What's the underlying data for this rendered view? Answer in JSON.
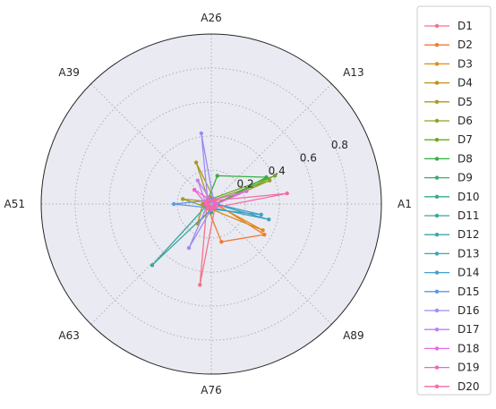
{
  "chart_data": {
    "type": "radar",
    "categories": [
      "A1",
      "A13",
      "A26",
      "A39",
      "A51",
      "A63",
      "A76",
      "A89"
    ],
    "angle_label_degrees": [
      0,
      45,
      90,
      135,
      180,
      225,
      270,
      315
    ],
    "radial_ticks": [
      "0.2",
      "0.4",
      "0.6",
      "0.8"
    ],
    "radial_tick_values": [
      0.2,
      0.4,
      0.6,
      0.8
    ],
    "rlim": [
      0,
      1.0
    ],
    "grid": true,
    "legend_position": "right",
    "background_color": "#eaeaf2",
    "series": [
      {
        "name": "D1",
        "color": "#f77189",
        "points": [
          [
            0,
            0.04
          ],
          [
            45,
            0.02
          ],
          [
            90,
            0.03
          ],
          [
            135,
            0.02
          ],
          [
            180,
            0.05
          ],
          [
            225,
            0.04
          ],
          [
            262,
            0.48
          ],
          [
            315,
            0.03
          ]
        ]
      },
      {
        "name": "D2",
        "color": "#f37932",
        "points": [
          [
            0,
            0.03
          ],
          [
            45,
            0.02
          ],
          [
            90,
            0.04
          ],
          [
            135,
            0.02
          ],
          [
            180,
            0.03
          ],
          [
            225,
            0.03
          ],
          [
            285,
            0.23
          ],
          [
            330,
            0.36
          ]
        ]
      },
      {
        "name": "D3",
        "color": "#de8b19",
        "points": [
          [
            0,
            0.02
          ],
          [
            45,
            0.03
          ],
          [
            90,
            0.02
          ],
          [
            135,
            0.03
          ],
          [
            180,
            0.04
          ],
          [
            225,
            0.02
          ],
          [
            270,
            0.03
          ],
          [
            333,
            0.34
          ]
        ]
      },
      {
        "name": "D4",
        "color": "#c28f1a",
        "points": [
          [
            0,
            0.03
          ],
          [
            45,
            0.02
          ],
          [
            90,
            0.03
          ],
          [
            135,
            0.02
          ],
          [
            180,
            0.05
          ],
          [
            235,
            0.14
          ],
          [
            270,
            0.03
          ],
          [
            315,
            0.02
          ]
        ]
      },
      {
        "name": "D5",
        "color": "#ad9820",
        "points": [
          [
            0,
            0.02
          ],
          [
            45,
            0.03
          ],
          [
            110,
            0.26
          ],
          [
            135,
            0.02
          ],
          [
            170,
            0.17
          ],
          [
            225,
            0.03
          ],
          [
            270,
            0.02
          ],
          [
            315,
            0.03
          ]
        ]
      },
      {
        "name": "D6",
        "color": "#92a024",
        "points": [
          [
            0,
            0.03
          ],
          [
            22,
            0.37
          ],
          [
            90,
            0.02
          ],
          [
            135,
            0.03
          ],
          [
            180,
            0.04
          ],
          [
            225,
            0.03
          ],
          [
            270,
            0.02
          ],
          [
            315,
            0.03
          ]
        ]
      },
      {
        "name": "D7",
        "color": "#6ca824",
        "points": [
          [
            0,
            0.02
          ],
          [
            24,
            0.41
          ],
          [
            90,
            0.03
          ],
          [
            135,
            0.02
          ],
          [
            180,
            0.03
          ],
          [
            225,
            0.02
          ],
          [
            270,
            0.03
          ],
          [
            315,
            0.02
          ]
        ]
      },
      {
        "name": "D8",
        "color": "#34af41",
        "points": [
          [
            0,
            0.03
          ],
          [
            26,
            0.36
          ],
          [
            78,
            0.17
          ],
          [
            135,
            0.03
          ],
          [
            180,
            0.02
          ],
          [
            225,
            0.03
          ],
          [
            270,
            0.02
          ],
          [
            315,
            0.03
          ]
        ]
      },
      {
        "name": "D9",
        "color": "#36ad74",
        "points": [
          [
            0,
            0.02
          ],
          [
            45,
            0.03
          ],
          [
            90,
            0.02
          ],
          [
            135,
            0.03
          ],
          [
            180,
            0.02
          ],
          [
            225,
            0.03
          ],
          [
            270,
            0.05
          ],
          [
            315,
            0.02
          ]
        ]
      },
      {
        "name": "D10",
        "color": "#38aa8d",
        "points": [
          [
            0,
            0.03
          ],
          [
            45,
            0.02
          ],
          [
            90,
            0.03
          ],
          [
            135,
            0.02
          ],
          [
            180,
            0.03
          ],
          [
            225,
            0.03
          ],
          [
            270,
            0.02
          ],
          [
            315,
            0.03
          ]
        ]
      },
      {
        "name": "D11",
        "color": "#39a89e",
        "points": [
          [
            0,
            0.02
          ],
          [
            45,
            0.03
          ],
          [
            90,
            0.02
          ],
          [
            135,
            0.03
          ],
          [
            180,
            0.02
          ],
          [
            226,
            0.5
          ],
          [
            270,
            0.03
          ],
          [
            315,
            0.02
          ]
        ]
      },
      {
        "name": "D12",
        "color": "#3ba6ab",
        "points": [
          [
            0,
            0.03
          ],
          [
            45,
            0.02
          ],
          [
            90,
            0.03
          ],
          [
            135,
            0.02
          ],
          [
            180,
            0.03
          ],
          [
            225,
            0.02
          ],
          [
            270,
            0.03
          ],
          [
            315,
            0.02
          ]
        ]
      },
      {
        "name": "D13",
        "color": "#3da4b9",
        "points": [
          [
            0,
            0.02
          ],
          [
            45,
            0.03
          ],
          [
            90,
            0.02
          ],
          [
            135,
            0.03
          ],
          [
            180,
            0.02
          ],
          [
            225,
            0.03
          ],
          [
            270,
            0.02
          ],
          [
            345,
            0.35
          ]
        ]
      },
      {
        "name": "D14",
        "color": "#40a0cc",
        "points": [
          [
            0,
            0.03
          ],
          [
            45,
            0.02
          ],
          [
            90,
            0.03
          ],
          [
            135,
            0.02
          ],
          [
            180,
            0.03
          ],
          [
            225,
            0.02
          ],
          [
            270,
            0.03
          ],
          [
            348,
            0.3
          ]
        ]
      },
      {
        "name": "D15",
        "color": "#5a97e9",
        "points": [
          [
            0,
            0.02
          ],
          [
            45,
            0.03
          ],
          [
            90,
            0.02
          ],
          [
            135,
            0.03
          ],
          [
            180,
            0.22
          ],
          [
            225,
            0.03
          ],
          [
            270,
            0.02
          ],
          [
            315,
            0.03
          ]
        ]
      },
      {
        "name": "D16",
        "color": "#9a8df4",
        "points": [
          [
            0,
            0.03
          ],
          [
            45,
            0.02
          ],
          [
            98,
            0.42
          ],
          [
            135,
            0.03
          ],
          [
            180,
            0.02
          ],
          [
            243,
            0.29
          ],
          [
            270,
            0.03
          ],
          [
            315,
            0.02
          ]
        ]
      },
      {
        "name": "D17",
        "color": "#c17ff4",
        "points": [
          [
            0,
            0.02
          ],
          [
            45,
            0.03
          ],
          [
            90,
            0.02
          ],
          [
            120,
            0.16
          ],
          [
            180,
            0.03
          ],
          [
            225,
            0.02
          ],
          [
            270,
            0.03
          ],
          [
            315,
            0.02
          ]
        ]
      },
      {
        "name": "D18",
        "color": "#e56ae6",
        "points": [
          [
            0,
            0.03
          ],
          [
            20,
            0.22
          ],
          [
            90,
            0.02
          ],
          [
            135,
            0.03
          ],
          [
            180,
            0.02
          ],
          [
            225,
            0.03
          ],
          [
            270,
            0.02
          ],
          [
            315,
            0.03
          ]
        ]
      },
      {
        "name": "D19",
        "color": "#f262ca",
        "points": [
          [
            0,
            0.02
          ],
          [
            45,
            0.03
          ],
          [
            90,
            0.02
          ],
          [
            140,
            0.13
          ],
          [
            180,
            0.03
          ],
          [
            225,
            0.02
          ],
          [
            270,
            0.03
          ],
          [
            315,
            0.02
          ]
        ]
      },
      {
        "name": "D20",
        "color": "#f46aa8",
        "points": [
          [
            8,
            0.45
          ],
          [
            45,
            0.03
          ],
          [
            90,
            0.02
          ],
          [
            135,
            0.03
          ],
          [
            180,
            0.02
          ],
          [
            225,
            0.03
          ],
          [
            270,
            0.02
          ],
          [
            315,
            0.03
          ]
        ]
      }
    ]
  }
}
